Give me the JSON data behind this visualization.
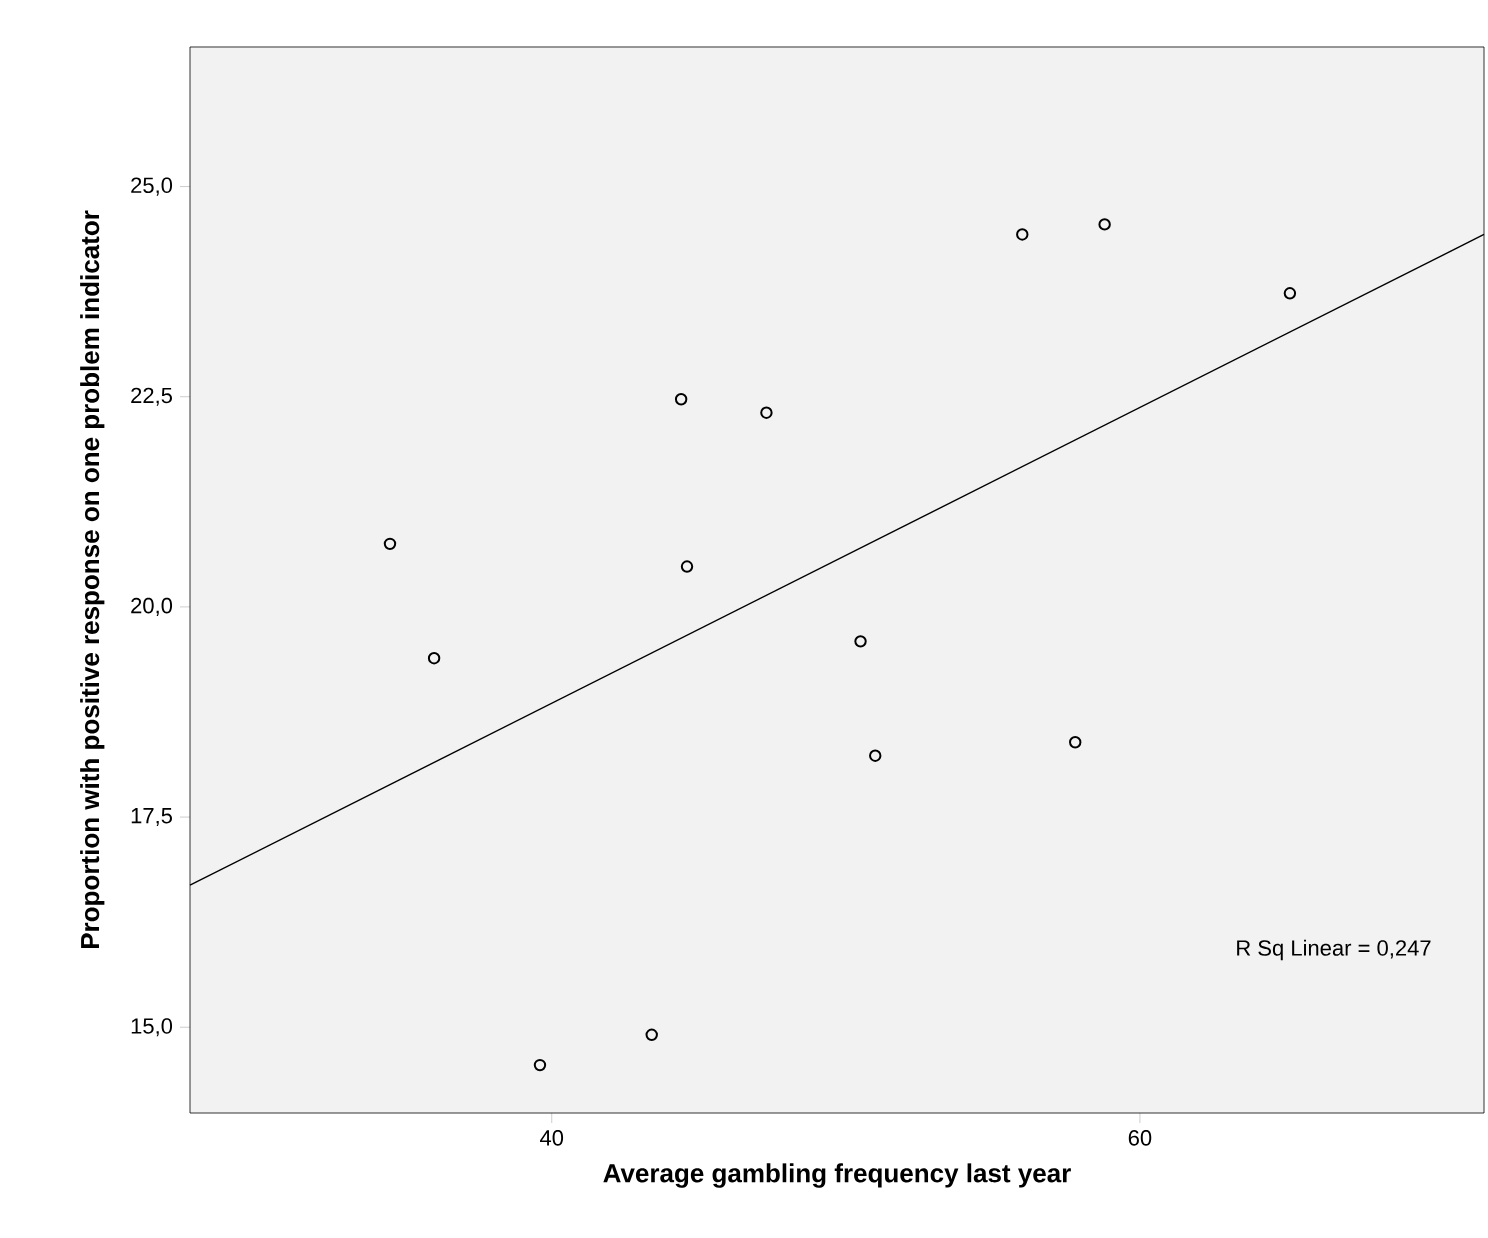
{
  "chart_data": {
    "type": "scatter",
    "xlabel": "Average gambling frequency last year",
    "ylabel": "Proportion with positive response on one problem indicator",
    "xlim": [
      27.7,
      71.7
    ],
    "ylim": [
      13.98,
      26.66
    ],
    "xticks": [
      40,
      60
    ],
    "yticks": [
      {
        "value": 15,
        "label": "15,0"
      },
      {
        "value": 17.5,
        "label": "17,5"
      },
      {
        "value": 20,
        "label": "20,0"
      },
      {
        "value": 22.5,
        "label": "22,5"
      },
      {
        "value": 25,
        "label": "25,0"
      }
    ],
    "grid": false,
    "series": [
      {
        "marker": "circle",
        "color": "#000000",
        "x": [
          34.5,
          36.0,
          44.4,
          44.6,
          39.6,
          43.4,
          47.3,
          56.0,
          58.8,
          65.1,
          50.5,
          51.0,
          57.8
        ],
        "values": [
          20.75,
          19.39,
          22.47,
          20.48,
          14.55,
          14.91,
          22.31,
          24.43,
          24.55,
          23.73,
          19.59,
          18.23,
          18.39
        ]
      },
      {
        "type": "line",
        "color": "#000000",
        "x": [
          27.7,
          71.7
        ],
        "values": [
          16.69,
          24.43
        ]
      }
    ],
    "annotations": [
      "R Sq Linear = 0,247"
    ]
  }
}
